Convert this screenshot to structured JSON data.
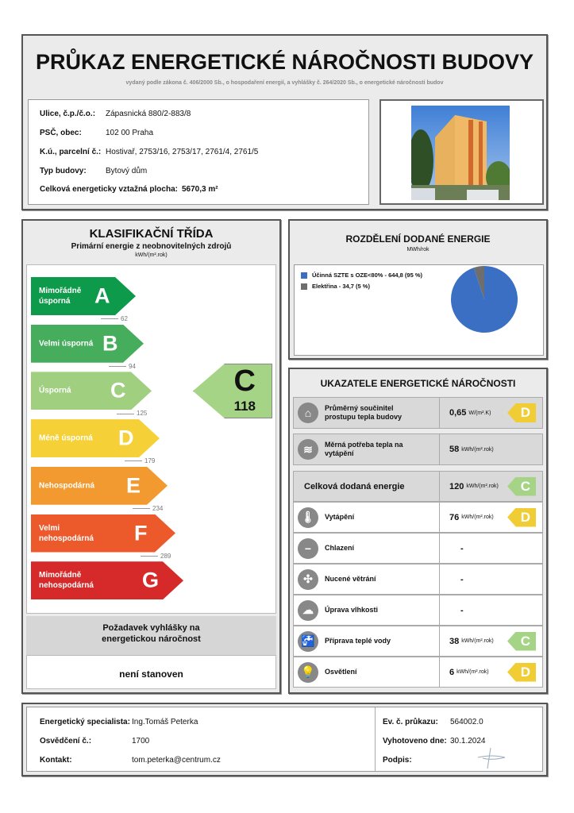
{
  "header": {
    "title": "PRŮKAZ ENERGETICKÉ NÁROČNOSTI BUDOVY",
    "subtitle": "vydaný podle zákona č. 406/2000 Sb., o hospodaření energií, a vyhlášky č. 264/2020 Sb., o energetické náročnosti budov"
  },
  "building": [
    {
      "label": "Ulice, č.p./č.o.:",
      "value": "Zápasnická 880/2-883/8"
    },
    {
      "label": "PSČ, obec:",
      "value": "102 00 Praha"
    },
    {
      "label": "K.ú., parcelní č.:",
      "value": "Hostivař, 2753/16, 2753/17, 2761/4, 2761/5"
    },
    {
      "label": "Typ budovy:",
      "value": "Bytový dům"
    }
  ],
  "area": {
    "label": "Celková energeticky vztažná plocha:",
    "value": "5670,3 m²"
  },
  "classification": {
    "title": "KLASIFIKAČNÍ TŘÍDA",
    "subtitle": "Primární energie z neobnovitelných zdrojů",
    "unit": "kWh/(m².rok)",
    "classes": [
      {
        "letter": "A",
        "label": "Mimořádně úsporná",
        "color": "#0e9a4b",
        "threshold": "62"
      },
      {
        "letter": "B",
        "label": "Velmi úsporná",
        "color": "#45ad5b",
        "threshold": "94"
      },
      {
        "letter": "C",
        "label": "Úsporná",
        "color": "#9fcf7f",
        "threshold": "125"
      },
      {
        "letter": "D",
        "label": "Méně úsporná",
        "color": "#f5d137",
        "threshold": "179"
      },
      {
        "letter": "E",
        "label": "Nehospodárná",
        "color": "#f29a2f",
        "threshold": "234"
      },
      {
        "letter": "F",
        "label": "Velmi nehospodárná",
        "color": "#ec5a2b",
        "threshold": "289"
      },
      {
        "letter": "G",
        "label": "Mimořádně nehospodárná",
        "color": "#d6292a",
        "threshold": ""
      }
    ],
    "result": {
      "letter": "C",
      "value": "118",
      "color": "#a6d486"
    },
    "requirement_title": "Požadavek vyhlášky na energetickou náročnost",
    "requirement_value": "není stanoven"
  },
  "distribution": {
    "title": "ROZDĚLENÍ DODANÉ ENERGIE",
    "unit": "MWh/rok",
    "chart_data": {
      "type": "pie",
      "series": [
        {
          "name": "Účinná SZTE s OZE<80% - 644,8 (95 %)",
          "value": 644.8,
          "color": "#3a6fc4"
        },
        {
          "name": "Elektřina - 34,7 (5 %)",
          "value": 34.7,
          "color": "#6e6e6e"
        }
      ]
    }
  },
  "indicators": {
    "title": "UKAZATELE ENERGETICKÉ NÁROČNOSTI",
    "rows": [
      {
        "icon": "house-icon",
        "glyph": "⌂",
        "label": "Průměrný součinitel prostupu tepla budovy",
        "value": "0,65",
        "unit": "W/(m².K)",
        "class": "D",
        "color": "#f1cd35",
        "gray": true
      },
      {
        "icon": "heat-demand-icon",
        "glyph": "≋",
        "label": "Měrná potřeba tepla na vytápění",
        "value": "58",
        "unit": "kWh/(m².rok)",
        "class": "",
        "gray": true
      },
      {
        "icon": "",
        "glyph": "",
        "label": "Celková dodaná energie",
        "value": "120",
        "unit": "kWh/(m².rok)",
        "class": "C",
        "color": "#a6d486",
        "gray": true,
        "big": true
      },
      {
        "icon": "heating-icon",
        "glyph": "🌡",
        "label": "Vytápění",
        "value": "76",
        "unit": "kWh/(m².rok)",
        "class": "D",
        "color": "#f1cd35"
      },
      {
        "icon": "cooling-icon",
        "glyph": "−",
        "label": "Chlazení",
        "value": "-",
        "unit": "",
        "class": ""
      },
      {
        "icon": "ventilation-fan-icon",
        "glyph": "✣",
        "label": "Nucené větrání",
        "value": "-",
        "unit": "",
        "class": ""
      },
      {
        "icon": "humidity-icon",
        "glyph": "☁",
        "label": "Úprava vlhkosti",
        "value": "-",
        "unit": "",
        "class": ""
      },
      {
        "icon": "hot-water-tap-icon",
        "glyph": "🚰",
        "label": "Příprava teplé vody",
        "value": "38",
        "unit": "kWh/(m².rok)",
        "class": "C",
        "color": "#a6d486"
      },
      {
        "icon": "lightbulb-icon",
        "glyph": "💡",
        "label": "Osvětlení",
        "value": "6",
        "unit": "kWh/(m².rok)",
        "class": "D",
        "color": "#f1cd35"
      }
    ]
  },
  "footer": {
    "left": [
      {
        "label": "Energetický specialista:",
        "value": "Ing.Tomáš Peterka"
      },
      {
        "label": "Osvědčení č.:",
        "value": "1700"
      },
      {
        "label": "Kontakt:",
        "value": "tom.peterka@centrum.cz"
      }
    ],
    "right": [
      {
        "label": "Ev. č. průkazu:",
        "value": "564002.0"
      },
      {
        "label": "Vyhotoveno dne:",
        "value": "30.1.2024"
      },
      {
        "label": "Podpis:",
        "value": ""
      }
    ]
  }
}
